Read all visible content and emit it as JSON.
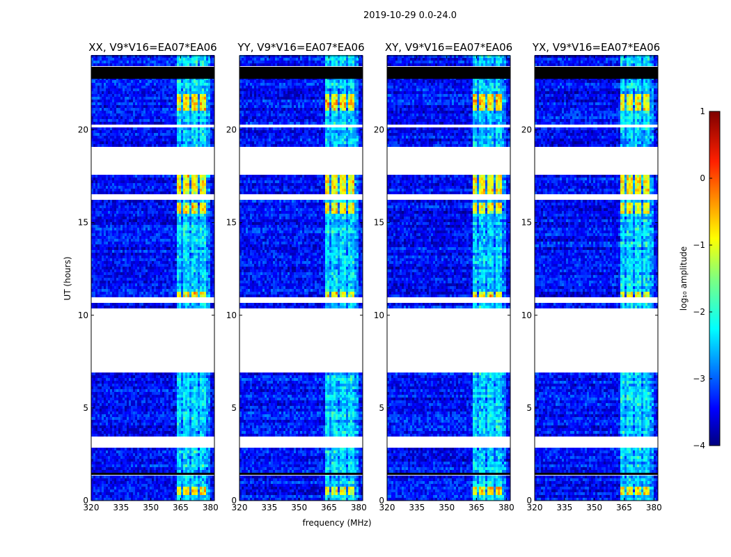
{
  "chart_data": {
    "type": "heatmap",
    "suptitle": "2019-10-29 0.0-24.0",
    "xlabel": "frequency (MHz)",
    "ylabel": "UT (hours)",
    "xlim": [
      320,
      382
    ],
    "ylim": [
      0,
      24
    ],
    "xticks": [
      "320",
      "335",
      "350",
      "365",
      "380"
    ],
    "xtick_values": [
      320,
      335,
      350,
      365,
      380
    ],
    "yticks": [
      "0",
      "5",
      "10",
      "15",
      "20"
    ],
    "ytick_values": [
      0,
      5,
      10,
      15,
      20
    ],
    "panels": [
      {
        "title": "XX, V9*V16=EA07*EA06"
      },
      {
        "title": "YY, V9*V16=EA07*EA06"
      },
      {
        "title": "XY, V9*V16=EA07*EA06"
      },
      {
        "title": "YX, V9*V16=EA07*EA06"
      }
    ],
    "flagged_hours": [
      [
        1.4,
        1.55
      ],
      [
        2.9,
        3.5
      ],
      [
        6.85,
        10.35
      ],
      [
        10.6,
        10.9
      ],
      [
        16.2,
        16.5
      ],
      [
        17.6,
        19.1
      ],
      [
        20.2,
        20.35
      ],
      [
        22.8,
        23.4
      ]
    ],
    "rfi_band_mhz": [
      363,
      380
    ],
    "colorbar": {
      "label": "log₁₀ amplitude",
      "ticks": [
        "1",
        "0",
        "−1",
        "−2",
        "−3",
        "−4"
      ],
      "tick_values": [
        1,
        0,
        -1,
        -2,
        -3,
        -4
      ],
      "range": [
        -4,
        1
      ],
      "colormap": "jet"
    }
  }
}
